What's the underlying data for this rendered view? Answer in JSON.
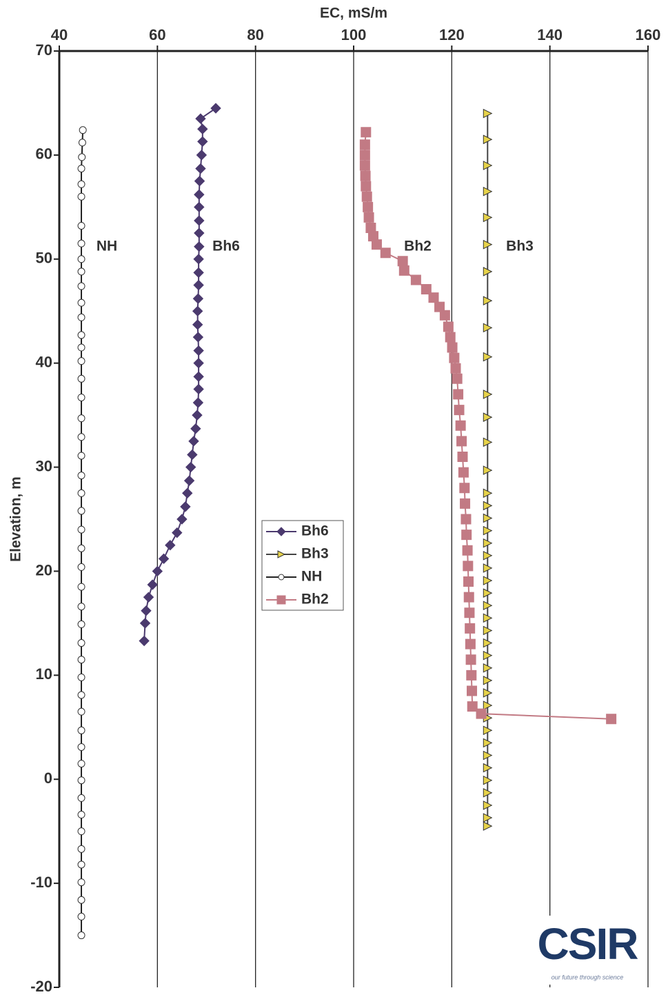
{
  "chart_data": {
    "type": "line",
    "xlabel": "EC, mS/m",
    "ylabel": "Elevation, m",
    "xlim": [
      40,
      160
    ],
    "ylim": [
      -20,
      70
    ],
    "xticks": [
      40,
      60,
      80,
      100,
      120,
      140,
      160
    ],
    "yticks": [
      -20,
      -10,
      0,
      10,
      20,
      30,
      40,
      50,
      60,
      70
    ],
    "grid": true,
    "legend": "center",
    "annotations": [
      "NH",
      "Bh6",
      "Bh2",
      "Bh3"
    ],
    "logo": {
      "text": "CSIR",
      "tagline": "our future through science"
    },
    "series": [
      {
        "name": "Bh6",
        "color": "#4b3a6e",
        "marker": "diamond",
        "marker_fill": "#4b3a6e",
        "x": [
          71.9,
          68.8,
          69.2,
          69.2,
          69.0,
          68.8,
          68.6,
          68.5,
          68.5,
          68.5,
          68.5,
          68.5,
          68.4,
          68.4,
          68.4,
          68.3,
          68.2,
          68.2,
          68.3,
          68.4,
          68.4,
          68.4,
          68.4,
          68.3,
          68.1,
          67.8,
          67.4,
          67.1,
          66.8,
          66.5,
          66.1,
          65.7,
          65.0,
          64.0,
          62.6,
          61.3,
          60.0,
          59.0,
          58.2,
          57.7,
          57.5,
          57.3
        ],
        "y": [
          64.5,
          63.5,
          62.5,
          61.3,
          60.0,
          58.7,
          57.5,
          56.2,
          55.0,
          53.7,
          52.5,
          51.2,
          50.0,
          48.7,
          47.5,
          46.2,
          45.0,
          43.7,
          42.5,
          41.2,
          40.0,
          38.7,
          37.5,
          36.2,
          35.0,
          33.7,
          32.5,
          31.2,
          30.0,
          28.7,
          27.5,
          26.2,
          25.0,
          23.7,
          22.5,
          21.2,
          20.0,
          18.7,
          17.5,
          16.2,
          15.0,
          13.3
        ]
      },
      {
        "name": "Bh3",
        "color": "#444444",
        "marker": "triangle",
        "marker_fill": "#e6d24a",
        "x": [
          127.3,
          127.3,
          127.3,
          127.3,
          127.3,
          127.3,
          127.3,
          127.3,
          127.3,
          127.3,
          127.3,
          127.3,
          127.3,
          127.3,
          127.3,
          127.3,
          127.3,
          127.3,
          127.3,
          127.3,
          127.3,
          127.3,
          127.3,
          127.3,
          127.3,
          127.3,
          127.3,
          127.3,
          127.3,
          127.3,
          127.3,
          127.3,
          127.3,
          127.3,
          127.3,
          127.3,
          127.3,
          127.3,
          127.3,
          127.3,
          127.3,
          127.3
        ],
        "y": [
          64.0,
          61.5,
          59.0,
          56.5,
          54.0,
          51.4,
          48.8,
          46.0,
          43.4,
          40.6,
          37.0,
          34.8,
          32.4,
          29.7,
          27.5,
          26.3,
          25.1,
          23.9,
          22.7,
          21.5,
          20.3,
          19.1,
          17.9,
          16.7,
          15.5,
          14.3,
          13.1,
          11.9,
          10.7,
          9.5,
          8.3,
          7.1,
          5.9,
          4.7,
          3.5,
          2.3,
          1.1,
          -0.1,
          -1.3,
          -2.5,
          -3.7,
          -4.5
        ]
      },
      {
        "name": "NH",
        "color": "#222222",
        "marker": "circle",
        "marker_fill": "#ffffff",
        "x": [
          44.8,
          44.7,
          44.6,
          44.5,
          44.5,
          44.5,
          44.5,
          44.5,
          44.5,
          44.5,
          44.5,
          44.5,
          44.5,
          44.5,
          44.5,
          44.5,
          44.5,
          44.5,
          44.5,
          44.5,
          44.5,
          44.5,
          44.5,
          44.5,
          44.5,
          44.5,
          44.5,
          44.5,
          44.5,
          44.5,
          44.5,
          44.5,
          44.5,
          44.5,
          44.5,
          44.5,
          44.5,
          44.5,
          44.5,
          44.5,
          44.5,
          44.5,
          44.5,
          44.5,
          44.5,
          44.5,
          44.5,
          44.5
        ],
        "y": [
          62.4,
          61.2,
          59.8,
          58.7,
          57.2,
          56.0,
          53.2,
          51.5,
          50.0,
          48.8,
          47.4,
          45.8,
          44.4,
          42.7,
          41.5,
          40.2,
          38.5,
          36.7,
          34.7,
          32.9,
          31.1,
          29.2,
          27.5,
          25.8,
          24.0,
          22.2,
          20.4,
          18.5,
          16.6,
          14.9,
          13.1,
          11.5,
          9.8,
          8.1,
          6.5,
          4.7,
          3.1,
          1.5,
          -0.1,
          -1.8,
          -3.4,
          -5.0,
          -6.7,
          -8.2,
          -9.9,
          -11.6,
          -13.2,
          -15.0
        ]
      },
      {
        "name": "Bh2",
        "color": "#c27a84",
        "marker": "square",
        "marker_fill": "#c27a84",
        "x": [
          102.5,
          102.3,
          102.3,
          102.3,
          102.4,
          102.5,
          102.7,
          102.9,
          103.1,
          103.5,
          104.0,
          104.7,
          106.5,
          110.0,
          110.3,
          112.7,
          114.8,
          116.3,
          117.5,
          118.6,
          119.3,
          119.7,
          120.1,
          120.5,
          120.8,
          121.1,
          121.3,
          121.5,
          121.8,
          122.0,
          122.2,
          122.4,
          122.6,
          122.7,
          122.9,
          123.0,
          123.2,
          123.3,
          123.4,
          123.5,
          123.6,
          123.7,
          123.8,
          123.9,
          124.0,
          124.1,
          124.2,
          126.0,
          152.5
        ],
        "y": [
          62.2,
          61.0,
          60.0,
          59.0,
          58.0,
          57.0,
          56.0,
          55.0,
          54.0,
          53.0,
          52.2,
          51.4,
          50.6,
          49.8,
          48.9,
          48.0,
          47.1,
          46.3,
          45.4,
          44.6,
          43.5,
          42.5,
          41.5,
          40.5,
          39.5,
          38.5,
          37.0,
          35.5,
          34.0,
          32.5,
          31.0,
          29.5,
          28.0,
          26.5,
          25.0,
          23.5,
          22.0,
          20.5,
          19.0,
          17.5,
          16.0,
          14.5,
          13.0,
          11.5,
          10.0,
          8.5,
          7.0,
          6.3,
          5.8
        ]
      }
    ]
  }
}
